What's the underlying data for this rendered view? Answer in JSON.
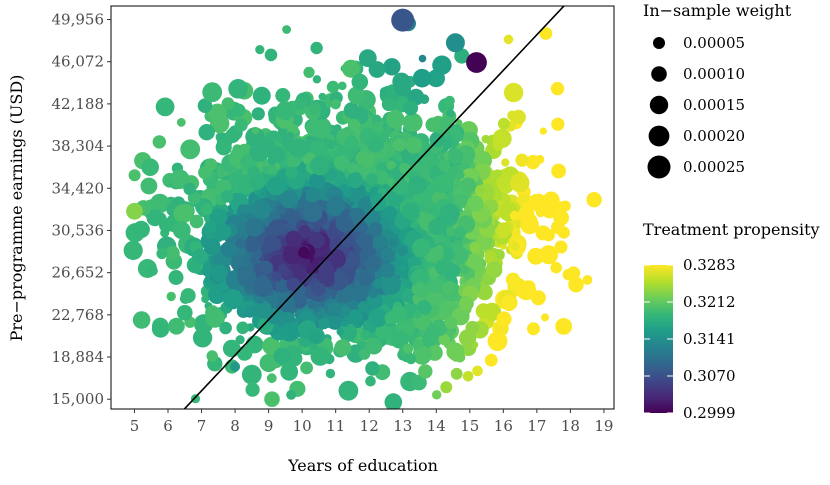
{
  "chart_data": {
    "type": "scatter",
    "title": "",
    "xlabel": "Years of education",
    "ylabel": "Pre−programme earnings (USD)",
    "xlim": [
      4.3,
      19.3
    ],
    "ylim": [
      14100,
      51200
    ],
    "x_ticks": [
      5,
      6,
      7,
      8,
      9,
      10,
      11,
      12,
      13,
      14,
      15,
      16,
      17,
      18,
      19
    ],
    "y_ticks": [
      15000,
      18884,
      22768,
      26652,
      30536,
      34420,
      38304,
      42188,
      46072,
      49956
    ],
    "y_tick_labels": [
      "15,000",
      "18,884",
      "22,768",
      "26,652",
      "30,536",
      "34,420",
      "38,304",
      "42,188",
      "46,072",
      "49,956"
    ],
    "reference_line": {
      "x1": 6.0,
      "y1": 12500,
      "x2": 18.6,
      "y2": 53800
    },
    "notable_points": [
      {
        "x": 13.0,
        "y": 49900,
        "weight": 0.00025,
        "propensity": 0.3075
      },
      {
        "x": 15.2,
        "y": 46000,
        "weight": 0.0002,
        "propensity": 0.3
      },
      {
        "x": 5.0,
        "y": 32300,
        "weight": 0.00012,
        "propensity": 0.323
      },
      {
        "x": 17.8,
        "y": 21700,
        "weight": 0.00012,
        "propensity": 0.3283
      },
      {
        "x": 9.1,
        "y": 15000,
        "weight": 0.0001,
        "propensity": 0.32
      },
      {
        "x": 14.3,
        "y": 16100,
        "weight": 5e-05,
        "propensity": 0.324
      },
      {
        "x": 8.0,
        "y": 18000,
        "weight": 3e-05,
        "propensity": 0.315
      }
    ],
    "size_legend": {
      "title": "In−sample weight",
      "entries": [
        "0.00005",
        "0.00010",
        "0.00015",
        "0.00020",
        "0.00025"
      ],
      "values": [
        5e-05,
        0.0001,
        0.00015,
        0.0002,
        0.00025
      ]
    },
    "color_legend": {
      "title": "Treatment propensity",
      "labels": [
        "0.3283",
        "0.3212",
        "0.3141",
        "0.3070",
        "0.2999"
      ],
      "values": [
        0.3283,
        0.3212,
        0.3141,
        0.307,
        0.2999
      ],
      "colormap": "viridis"
    },
    "colors": {
      "viridis": [
        "#440154",
        "#482878",
        "#3e4989",
        "#31688e",
        "#26828e",
        "#1f9e89",
        "#35b779",
        "#6ece58",
        "#b5de2b",
        "#fde725"
      ],
      "reference_line": "#000000"
    }
  }
}
